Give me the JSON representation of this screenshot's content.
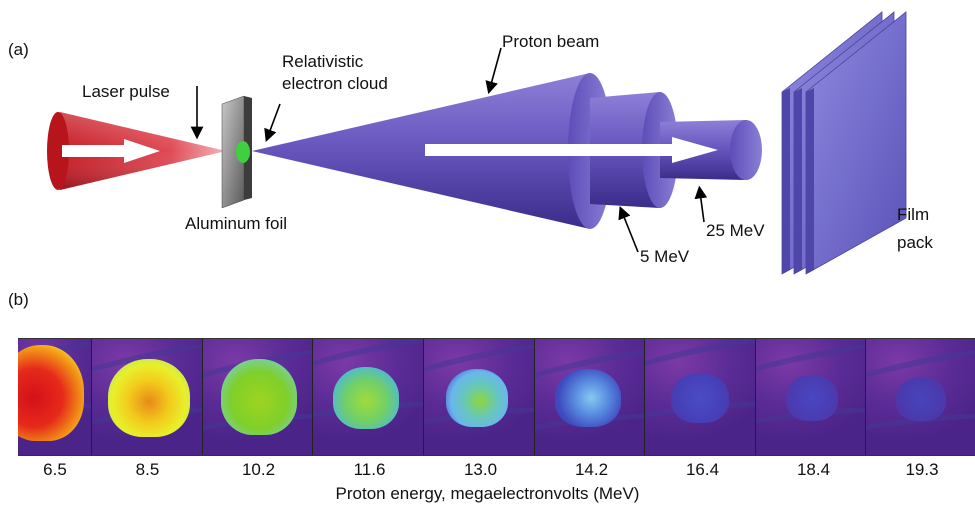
{
  "panel_a": {
    "tag": "(a)",
    "labels": {
      "laser_pulse": "Laser pulse",
      "relativistic": "Relativistic",
      "electron_cloud": "electron cloud",
      "proton_beam": "Proton beam",
      "aluminum_foil": "Aluminum foil",
      "energy_5": "5 MeV",
      "energy_25": "25 MeV",
      "film": "Film",
      "pack": "pack"
    },
    "colors": {
      "laser": "#d8323a",
      "foil": "#8e8e8e",
      "electron_cloud": "#3fbf3f",
      "beam": "#6d5cc0",
      "film": "#7a74d6"
    }
  },
  "panel_b": {
    "tag": "(b)",
    "axis_title": "Proton energy, megaelectronvolts (MeV)",
    "energies": [
      "6.5",
      "8.5",
      "10.2",
      "11.6",
      "13.0",
      "14.2",
      "16.4",
      "18.4",
      "19.3"
    ]
  }
}
